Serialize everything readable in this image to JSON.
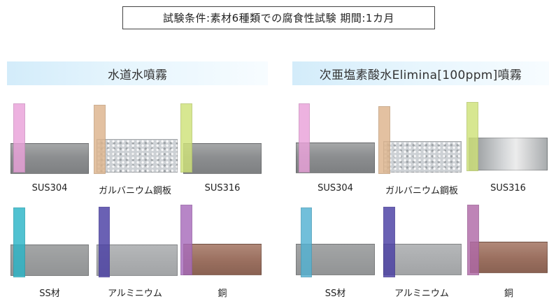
{
  "title": "試験条件:素材6種類での腐食性試験 期間:1カ月",
  "panels": {
    "left": {
      "header": "水道水噴霧",
      "samples": [
        {
          "label": "SUS304",
          "material": "sus",
          "tape_color": "#eaa2da"
        },
        {
          "label": "ガルバニウム鋼板",
          "material": "galv",
          "tape_color": "#ddb48d"
        },
        {
          "label": "SUS316",
          "material": "sus",
          "tape_color": "#cfe27a"
        },
        {
          "label": "SS材",
          "material": "ss",
          "tape_color": "#2bb5c7"
        },
        {
          "label": "アルミニウム",
          "material": "al",
          "tape_color": "#4a3fa4"
        },
        {
          "label": "銅",
          "material": "cu",
          "tape_color": "#a86cbb"
        }
      ]
    },
    "right": {
      "header": "次亜塩素酸水Elimina[100ppm]噴霧",
      "samples": [
        {
          "label": "SUS304",
          "material": "sus",
          "tape_color": "#eaa2da"
        },
        {
          "label": "ガルバニウム鋼板",
          "material": "galv",
          "tape_color": "#ddb48d"
        },
        {
          "label": "SUS316",
          "material": "sus316-bright",
          "tape_color": "#cfe27a"
        },
        {
          "label": "SS材",
          "material": "ss",
          "tape_color": "#53b2d2"
        },
        {
          "label": "アルミニウム",
          "material": "al",
          "tape_color": "#4a3fa4"
        },
        {
          "label": "銅",
          "material": "cu",
          "tape_color": "#b06aa8"
        }
      ]
    }
  }
}
